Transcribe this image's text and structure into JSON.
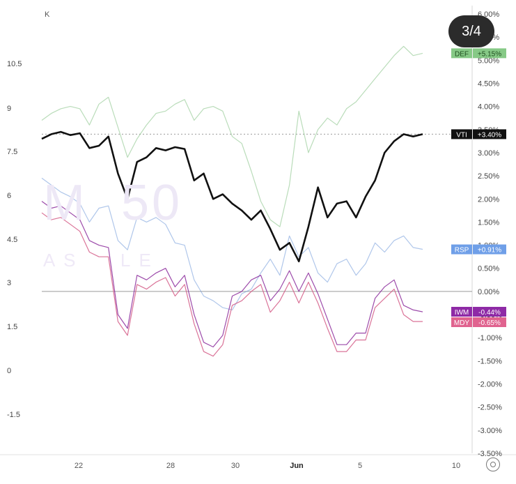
{
  "pager": {
    "label": "3/4"
  },
  "left_axis": {
    "unit_label": "K",
    "ticks": [
      "10.5",
      "9",
      "7.5",
      "6",
      "4.5",
      "3",
      "1.5",
      "0",
      "-1.5"
    ]
  },
  "settings": {
    "icon": "gear-icon"
  },
  "chart_data": {
    "type": "line",
    "x_ticks": [
      "22",
      "28",
      "30",
      "Jun",
      "5",
      "10"
    ],
    "y_ticks": [
      "6.00%",
      "5.50%",
      "5.00%",
      "4.50%",
      "4.00%",
      "3.50%",
      "3.00%",
      "2.50%",
      "2.00%",
      "1.50%",
      "1.00%",
      "0.50%",
      "0.00%",
      "-0.50%",
      "-1.00%",
      "-1.50%",
      "-2.00%",
      "-2.50%",
      "-3.00%",
      "-3.50%"
    ],
    "ylim": [
      -3.5,
      6.0
    ],
    "zero_line": true,
    "x": [
      0,
      3,
      6,
      9,
      12,
      15,
      18,
      21,
      24,
      27,
      30,
      33,
      36,
      39,
      42,
      45,
      48,
      51,
      54,
      57,
      60,
      63,
      66,
      69,
      72,
      75,
      78,
      81,
      84,
      87,
      90,
      93,
      96,
      99,
      102,
      105,
      108,
      111,
      114,
      117,
      120
    ],
    "series": [
      {
        "name": "VTI",
        "color": "#111111",
        "badge": "+3.40%",
        "last": 3.4,
        "values": [
          3.3,
          3.4,
          3.45,
          3.38,
          3.42,
          3.1,
          3.15,
          3.35,
          2.55,
          2.0,
          2.8,
          2.9,
          3.1,
          3.05,
          3.12,
          3.08,
          2.4,
          2.55,
          2.0,
          2.1,
          1.9,
          1.75,
          1.55,
          1.75,
          1.35,
          0.9,
          1.05,
          0.65,
          1.4,
          2.25,
          1.6,
          1.9,
          1.95,
          1.6,
          2.05,
          2.4,
          3.0,
          3.25,
          3.4,
          3.35,
          3.4
        ]
      },
      {
        "name": "DEF",
        "color": "#7fbf7f",
        "badge": "+5.15%",
        "last": 5.15,
        "values": [
          3.7,
          3.85,
          3.95,
          4.0,
          3.95,
          3.6,
          4.05,
          4.2,
          3.55,
          2.9,
          3.3,
          3.6,
          3.85,
          3.9,
          4.05,
          4.15,
          3.7,
          3.95,
          4.0,
          3.9,
          3.35,
          3.2,
          2.6,
          1.95,
          1.55,
          1.4,
          2.3,
          3.9,
          3.0,
          3.5,
          3.75,
          3.6,
          3.95,
          4.1,
          4.35,
          4.6,
          4.85,
          5.1,
          5.3,
          5.1,
          5.15
        ]
      },
      {
        "name": "RSP",
        "color": "#6e97d8",
        "badge": "+0.91%",
        "last": 0.91,
        "values": [
          2.45,
          2.3,
          2.15,
          2.05,
          1.9,
          1.5,
          1.8,
          1.85,
          1.1,
          0.9,
          1.6,
          1.5,
          1.6,
          1.45,
          1.05,
          1.0,
          0.25,
          -0.1,
          -0.2,
          -0.35,
          -0.4,
          -0.05,
          0.05,
          0.4,
          0.7,
          0.35,
          1.2,
          0.75,
          0.95,
          0.4,
          0.2,
          0.6,
          0.7,
          0.35,
          0.6,
          1.05,
          0.85,
          1.1,
          1.2,
          0.95,
          0.91
        ]
      },
      {
        "name": "IWM",
        "color": "#8b2a9b",
        "badge": "-0.44%",
        "last": -0.44,
        "values": [
          1.95,
          1.8,
          1.85,
          1.7,
          1.55,
          1.1,
          1.0,
          0.95,
          -0.5,
          -0.8,
          0.35,
          0.25,
          0.4,
          0.5,
          0.1,
          0.35,
          -0.5,
          -1.1,
          -1.2,
          -0.95,
          -0.1,
          0.0,
          0.25,
          0.35,
          -0.2,
          0.05,
          0.45,
          0.0,
          0.4,
          -0.05,
          -0.6,
          -1.15,
          -1.15,
          -0.9,
          -0.9,
          -0.15,
          0.1,
          0.25,
          -0.3,
          -0.4,
          -0.44
        ]
      },
      {
        "name": "MDY",
        "color": "#d45a86",
        "badge": "-0.65%",
        "last": -0.65,
        "values": [
          1.7,
          1.55,
          1.6,
          1.45,
          1.3,
          0.85,
          0.75,
          0.75,
          -0.65,
          -0.95,
          0.15,
          0.05,
          0.2,
          0.3,
          -0.1,
          0.15,
          -0.7,
          -1.3,
          -1.4,
          -1.15,
          -0.3,
          -0.2,
          0.0,
          0.15,
          -0.45,
          -0.2,
          0.2,
          -0.25,
          0.2,
          -0.25,
          -0.8,
          -1.3,
          -1.3,
          -1.05,
          -1.05,
          -0.35,
          -0.15,
          0.05,
          -0.5,
          -0.65,
          -0.65
        ]
      }
    ]
  }
}
